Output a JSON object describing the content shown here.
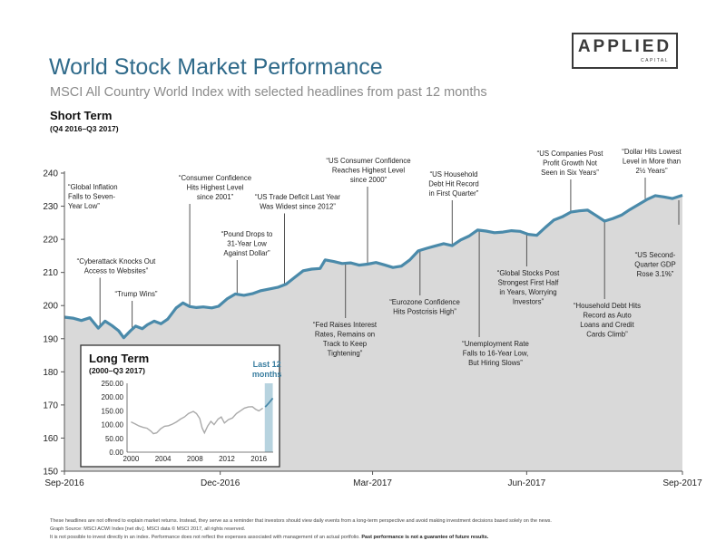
{
  "header": {
    "title": "World Stock Market Performance",
    "subtitle": "MSCI All Country World Index with selected headlines from past 12 months",
    "section_title": "Short Term",
    "section_subtitle": "(Q4 2016–Q3 2017)"
  },
  "logo": {
    "main": "APPLIED",
    "sub": "CAPITAL"
  },
  "colors": {
    "line": "#4a8aaa",
    "area": "#d9d9d9",
    "title": "#2f6a8a",
    "highlight": "#b7d3df"
  },
  "chart_data": [
    {
      "type": "area",
      "x_tick_labels": [
        "Sep-2016",
        "Dec-2016",
        "Mar-2017",
        "Jun-2017",
        "Sep-2017"
      ],
      "xlim": [
        "2016-09-30",
        "2017-09-30"
      ],
      "ylim": [
        150,
        240
      ],
      "y_ticks": [
        150,
        160,
        170,
        180,
        190,
        200,
        210,
        220,
        230,
        240
      ],
      "grid": false,
      "series": [
        {
          "points": [
            [
              "2016-09-30",
              196.5
            ],
            [
              "2016-10-05",
              196.2
            ],
            [
              "2016-10-10",
              195.5
            ],
            [
              "2016-10-15",
              196.3
            ],
            [
              "2016-10-20",
              193.2
            ],
            [
              "2016-10-24",
              195.3
            ],
            [
              "2016-10-28",
              194.0
            ],
            [
              "2016-11-01",
              192.4
            ],
            [
              "2016-11-04",
              190.3
            ],
            [
              "2016-11-08",
              192.4
            ],
            [
              "2016-11-11",
              193.8
            ],
            [
              "2016-11-15",
              193.0
            ],
            [
              "2016-11-18",
              194.2
            ],
            [
              "2016-11-22",
              195.3
            ],
            [
              "2016-11-26",
              194.5
            ],
            [
              "2016-11-30",
              195.9
            ],
            [
              "2016-12-05",
              199.3
            ],
            [
              "2016-12-09",
              200.8
            ],
            [
              "2016-12-13",
              199.7
            ],
            [
              "2016-12-17",
              199.4
            ],
            [
              "2016-12-21",
              199.6
            ],
            [
              "2016-12-26",
              199.3
            ],
            [
              "2016-12-30",
              199.8
            ],
            [
              "2017-01-04",
              202.0
            ],
            [
              "2017-01-09",
              203.5
            ],
            [
              "2017-01-14",
              203.1
            ],
            [
              "2017-01-19",
              203.6
            ],
            [
              "2017-01-24",
              204.5
            ],
            [
              "2017-01-29",
              205.0
            ],
            [
              "2017-02-03",
              205.5
            ],
            [
              "2017-02-08",
              206.5
            ],
            [
              "2017-02-13",
              208.5
            ],
            [
              "2017-02-18",
              210.5
            ],
            [
              "2017-02-23",
              211.0
            ],
            [
              "2017-02-28",
              211.2
            ],
            [
              "2017-03-03",
              213.8
            ],
            [
              "2017-03-08",
              213.3
            ],
            [
              "2017-03-13",
              212.7
            ],
            [
              "2017-03-18",
              212.9
            ],
            [
              "2017-03-23",
              212.2
            ],
            [
              "2017-03-28",
              212.5
            ],
            [
              "2017-04-02",
              213.0
            ],
            [
              "2017-04-07",
              212.3
            ],
            [
              "2017-04-12",
              211.5
            ],
            [
              "2017-04-17",
              211.9
            ],
            [
              "2017-04-22",
              213.8
            ],
            [
              "2017-04-27",
              216.5
            ],
            [
              "2017-05-02",
              217.3
            ],
            [
              "2017-05-07",
              218.0
            ],
            [
              "2017-05-12",
              218.7
            ],
            [
              "2017-05-17",
              218.1
            ],
            [
              "2017-05-22",
              219.8
            ],
            [
              "2017-05-27",
              221.0
            ],
            [
              "2017-06-01",
              222.8
            ],
            [
              "2017-06-06",
              222.5
            ],
            [
              "2017-06-11",
              222.0
            ],
            [
              "2017-06-16",
              222.2
            ],
            [
              "2017-06-21",
              222.6
            ],
            [
              "2017-06-26",
              222.4
            ],
            [
              "2017-07-01",
              221.5
            ],
            [
              "2017-07-06",
              221.2
            ],
            [
              "2017-07-11",
              223.6
            ],
            [
              "2017-07-16",
              225.8
            ],
            [
              "2017-07-21",
              226.8
            ],
            [
              "2017-07-26",
              228.2
            ],
            [
              "2017-07-31",
              228.6
            ],
            [
              "2017-08-05",
              228.8
            ],
            [
              "2017-08-10",
              227.2
            ],
            [
              "2017-08-15",
              225.5
            ],
            [
              "2017-08-20",
              226.3
            ],
            [
              "2017-08-25",
              227.3
            ],
            [
              "2017-08-30",
              229.0
            ],
            [
              "2017-09-04",
              230.5
            ],
            [
              "2017-09-09",
              232.0
            ],
            [
              "2017-09-14",
              233.2
            ],
            [
              "2017-09-19",
              232.8
            ],
            [
              "2017-09-24",
              232.3
            ],
            [
              "2017-09-30",
              233.3
            ]
          ]
        }
      ],
      "annotations": [
        {
          "id": "inflation",
          "date": "2016-09-30",
          "lines": [
            "“Global Inflation",
            "Falls to Seven-",
            "Year Low”"
          ]
        },
        {
          "id": "cyberattack",
          "date": "2016-10-21",
          "lines": [
            "“Cyberattack Knocks Out",
            "Access to Websites”"
          ]
        },
        {
          "id": "trump",
          "date": "2016-11-09",
          "lines": [
            "“Trump Wins”"
          ]
        },
        {
          "id": "confidence",
          "date": "2016-12-13",
          "lines": [
            "“Consumer Confidence",
            "Hits Highest Level",
            "since 2001”"
          ]
        },
        {
          "id": "pound",
          "date": "2017-01-10",
          "lines": [
            "“Pound Drops to",
            "31-Year Low",
            "Against Dollar”"
          ]
        },
        {
          "id": "trade",
          "date": "2017-02-07",
          "lines": [
            "“US Trade Deficit Last Year",
            "Was Widest since 2012”"
          ]
        },
        {
          "id": "fed",
          "date": "2017-03-15",
          "lines": [
            "“Fed Raises Interest",
            "Rates, Remains on",
            "Track to Keep",
            "Tightening”"
          ]
        },
        {
          "id": "usconf",
          "date": "2017-03-28",
          "lines": [
            "“US Consumer Confidence",
            "Reaches Highest Level",
            "since 2000”"
          ]
        },
        {
          "id": "eurozone",
          "date": "2017-04-28",
          "lines": [
            "“Eurozone Confidence",
            "Hits Postcrisis High”"
          ]
        },
        {
          "id": "household",
          "date": "2017-05-17",
          "lines": [
            "“US Household",
            "Debt Hit Record",
            "in First Quarter”"
          ]
        },
        {
          "id": "unemployment",
          "date": "2017-06-02",
          "lines": [
            "“Unemployment Rate",
            "Falls to 16-Year Low,",
            "But Hiring Slows”"
          ]
        },
        {
          "id": "globalstocks",
          "date": "2017-06-30",
          "lines": [
            "“Global Stocks Post",
            "Strongest First Half",
            "in Years, Worrying",
            "Investors”"
          ]
        },
        {
          "id": "profit",
          "date": "2017-07-26",
          "lines": [
            "“US Companies Post",
            "Profit Growth Not",
            "Seen in Six Years”"
          ]
        },
        {
          "id": "debt",
          "date": "2017-08-15",
          "lines": [
            "“Household Debt Hits",
            "Record as Auto",
            "Loans and Credit",
            "Cards Climb”"
          ]
        },
        {
          "id": "dollar",
          "date": "2017-09-08",
          "lines": [
            "“Dollar Hits Lowest",
            "Level in More than",
            "2½ Years”"
          ]
        },
        {
          "id": "gdp",
          "date": "2017-09-28",
          "lines": [
            "“US Second-",
            "Quarter GDP",
            "Rose 3.1%”"
          ]
        }
      ]
    },
    {
      "type": "line",
      "title": "Long Term",
      "subtitle": "(2000–Q3 2017)",
      "highlight_label": [
        "Last 12",
        "months"
      ],
      "x_ticks": [
        2000,
        2004,
        2008,
        2012,
        2016
      ],
      "x_tick_labels": [
        "2000",
        "2004",
        "2008",
        "2012",
        "2016"
      ],
      "xlim": [
        1999.5,
        2017.8
      ],
      "ylim": [
        0,
        250
      ],
      "y_tick_labels": [
        "0.00",
        "50.00",
        "100.00",
        "150.00",
        "200.00",
        "250.00"
      ],
      "y_ticks": [
        0,
        50,
        100,
        150,
        200,
        250
      ],
      "highlight_range": [
        2016.75,
        2017.75
      ],
      "series": [
        {
          "points": [
            [
              2000.0,
              110
            ],
            [
              2000.5,
              103
            ],
            [
              2001.0,
              95
            ],
            [
              2001.5,
              90
            ],
            [
              2002.0,
              87
            ],
            [
              2002.5,
              76
            ],
            [
              2002.8,
              67
            ],
            [
              2003.2,
              70
            ],
            [
              2003.7,
              85
            ],
            [
              2004.2,
              94
            ],
            [
              2004.7,
              96
            ],
            [
              2005.2,
              102
            ],
            [
              2005.7,
              110
            ],
            [
              2006.2,
              120
            ],
            [
              2006.7,
              128
            ],
            [
              2007.2,
              140
            ],
            [
              2007.8,
              148
            ],
            [
              2008.2,
              140
            ],
            [
              2008.6,
              122
            ],
            [
              2008.9,
              88
            ],
            [
              2009.2,
              70
            ],
            [
              2009.6,
              95
            ],
            [
              2010.0,
              112
            ],
            [
              2010.4,
              100
            ],
            [
              2010.9,
              120
            ],
            [
              2011.3,
              128
            ],
            [
              2011.7,
              106
            ],
            [
              2012.2,
              118
            ],
            [
              2012.7,
              124
            ],
            [
              2013.2,
              140
            ],
            [
              2013.7,
              150
            ],
            [
              2014.2,
              160
            ],
            [
              2014.7,
              164
            ],
            [
              2015.2,
              165
            ],
            [
              2015.6,
              156
            ],
            [
              2016.0,
              150
            ],
            [
              2016.5,
              160
            ],
            [
              2016.8,
              164
            ],
            [
              2017.0,
              170
            ],
            [
              2017.3,
              180
            ],
            [
              2017.6,
              190
            ],
            [
              2017.75,
              196
            ]
          ]
        }
      ]
    }
  ],
  "footer": {
    "line1": "These headlines are not offered to explain market returns. Instead, they serve as a reminder that investors should view daily events from a long-term perspective and avoid making investment decisions based solely on the news.",
    "line2": "Graph Source: MSCI ACWI Index [net div.]. MSCI data © MSCI 2017, all rights reserved.",
    "line3": "It is not possible to invest directly in an index. Performance does not reflect the expenses associated with management of an actual portfolio.",
    "line3_bold": "Past performance is not a guarantee of future results."
  }
}
